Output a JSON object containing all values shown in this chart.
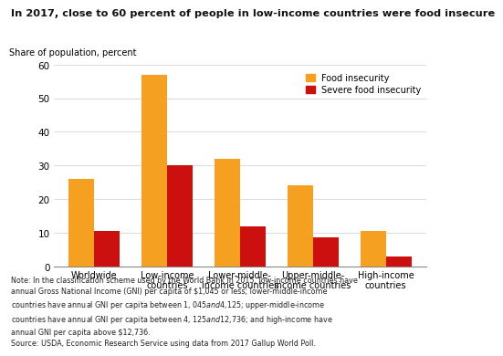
{
  "title": "In 2017, close to 60 percent of people in low-income countries were food insecure",
  "ylabel": "Share of population, percent",
  "categories": [
    "Worldwide",
    "Low-income\ncountries",
    "Lower-middle-\nincome countries",
    "Upper-middle-\nincome countries",
    "High-income\ncountries"
  ],
  "food_insecurity": [
    26,
    57,
    32,
    24,
    10.5
  ],
  "severe_food_insecurity": [
    10.5,
    30,
    12,
    8.5,
    3
  ],
  "food_color": "#F5A020",
  "severe_color": "#CC1010",
  "ylim": [
    0,
    60
  ],
  "yticks": [
    0,
    10,
    20,
    30,
    40,
    50,
    60
  ],
  "bar_width": 0.35,
  "legend_labels": [
    "Food insecurity",
    "Severe food insecurity"
  ],
  "note_line1": "Note: In the classification scheme used by the World Bank in 2015, low-income countries have",
  "note_line2": "annual Gross National Income (GNI) per capita of $1,045 or less; lower-middle-income",
  "note_line3": "countries have annual GNI per capita between $1,045 and $4,125; upper-middle-income",
  "note_line4": "countries have annual GNI per capita between $4,125 and $12,736; and high-income have",
  "note_line5": "annual GNI per capita above $12,736.",
  "source": "Source: USDA, Economic Research Service using data from 2017 Gallup World Poll.",
  "background_color": "#FFFFFF"
}
